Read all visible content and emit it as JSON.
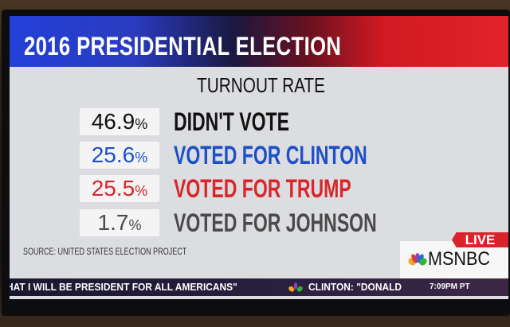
{
  "graphic": {
    "title": "2016 PRESIDENTIAL ELECTION",
    "subtitle": "TURNOUT RATE",
    "rows": [
      {
        "value": "46.9",
        "unit": "%",
        "label": "DIDN'T VOTE",
        "color": "#111111"
      },
      {
        "value": "25.6",
        "unit": "%",
        "label": "VOTED FOR CLINTON",
        "color": "#1c4fc8"
      },
      {
        "value": "25.5",
        "unit": "%",
        "label": "VOTED FOR TRUMP",
        "color": "#d8262a"
      },
      {
        "value": "1.7",
        "unit": "%",
        "label": "VOTED FOR JOHNSON",
        "color": "#4a4a4a"
      }
    ],
    "source": "SOURCE: UNITED STATES ELECTION PROJECT"
  },
  "network": {
    "live": "LIVE",
    "name": "MSNBC"
  },
  "ticker": {
    "text1": "HAT I WILL BE PRESIDENT FOR ALL AMERICANS\"",
    "text2": "CLINTON: \"DONALD",
    "time": "7:09PM PT"
  }
}
